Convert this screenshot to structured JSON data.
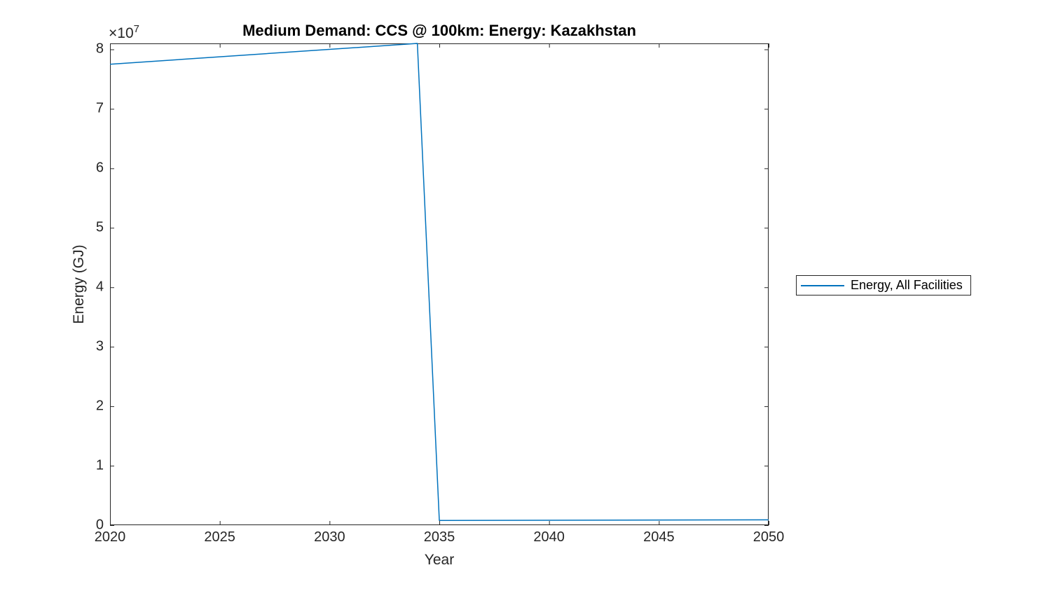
{
  "figure": {
    "background": "#ffffff"
  },
  "chart_data": {
    "type": "line",
    "title": "Medium Demand: CCS @ 100km: Energy: Kazakhstan",
    "xlabel": "Year",
    "ylabel": "Energy (GJ)",
    "y_axis_exponent": {
      "base": "×10",
      "power": "7"
    },
    "xlim": [
      2020,
      2050
    ],
    "ylim": [
      0,
      81000000
    ],
    "x_tick_values": [
      2020,
      2025,
      2030,
      2035,
      2040,
      2045,
      2050
    ],
    "x_ticks": [
      "2020",
      "2025",
      "2030",
      "2035",
      "2040",
      "2045",
      "2050"
    ],
    "y_tick_values": [
      0,
      10000000,
      20000000,
      30000000,
      40000000,
      50000000,
      60000000,
      70000000,
      80000000
    ],
    "y_ticks": [
      "0",
      "1",
      "2",
      "3",
      "4",
      "5",
      "6",
      "7",
      "8"
    ],
    "grid": false,
    "axis_color": "#262626",
    "legend": {
      "position": "right-outside",
      "entries": [
        {
          "label": "Energy, All Facilities",
          "color": "#0072BD"
        }
      ]
    },
    "series": [
      {
        "name": "Energy, All Facilities",
        "color": "#0072BD",
        "line_width": 1.5,
        "points": [
          [
            2020,
            77500000
          ],
          [
            2034,
            81000000
          ],
          [
            2035,
            800000
          ],
          [
            2050,
            900000
          ]
        ]
      }
    ]
  }
}
